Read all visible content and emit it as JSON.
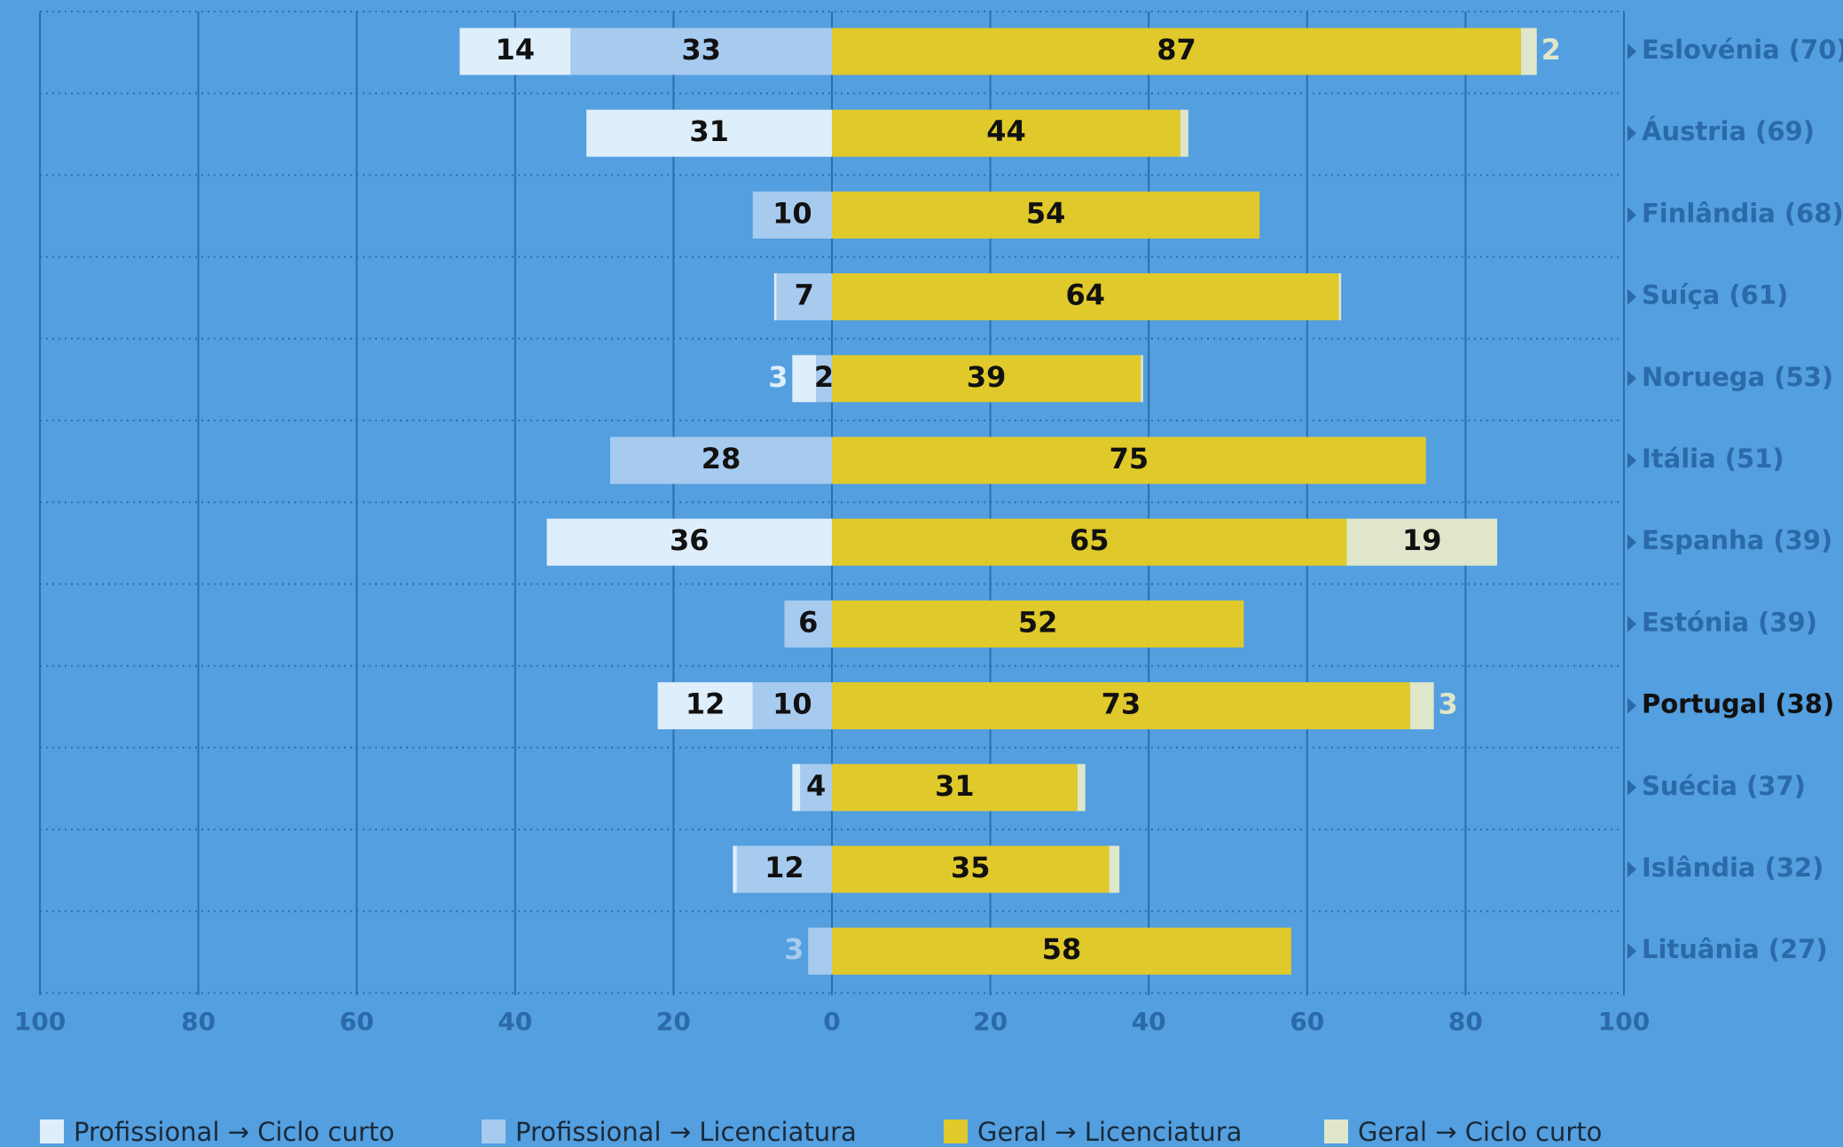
{
  "chart_data": {
    "type": "diverging_bar",
    "categories": [
      "Eslovénia (70)",
      "Áustria (69)",
      "Finlândia (68)",
      "Suíça (61)",
      "Noruega (53)",
      "Itália (51)",
      "Espanha (39)",
      "Estónia (39)",
      "Portugal (38)",
      "Suécia (37)",
      "Islândia (32)",
      "Lituânia (27)"
    ],
    "highlight_index": 8,
    "series": [
      {
        "name": "Profissional → Ciclo curto",
        "color": "#deeefa",
        "values": [
          14,
          31,
          0,
          0.3,
          3,
          0,
          36,
          0,
          12,
          1,
          0.5,
          0
        ]
      },
      {
        "name": "Profissional → Licenciatura",
        "color": "#a6cbef",
        "values": [
          33,
          0,
          10,
          7,
          2,
          28,
          0,
          6,
          10,
          4,
          12,
          3
        ]
      },
      {
        "name": "Geral → Licenciatura",
        "color": "#e0c92b",
        "values": [
          87,
          44,
          54,
          64,
          39,
          75,
          65,
          52,
          73,
          31,
          35,
          58
        ]
      },
      {
        "name": "Geral → Ciclo curto",
        "color": "#dfe6c9",
        "values": [
          2,
          1,
          0,
          0.3,
          0.3,
          0,
          19,
          0,
          3,
          1,
          1.3,
          0
        ]
      }
    ],
    "xlim": [
      -100,
      100
    ],
    "xticks": [
      {
        "value": -100,
        "label": "100"
      },
      {
        "value": -80,
        "label": "80"
      },
      {
        "value": -60,
        "label": "60"
      },
      {
        "value": -40,
        "label": "40"
      },
      {
        "value": -20,
        "label": "20"
      },
      0,
      20,
      40,
      60,
      80,
      100
    ],
    "grid": true
  }
}
